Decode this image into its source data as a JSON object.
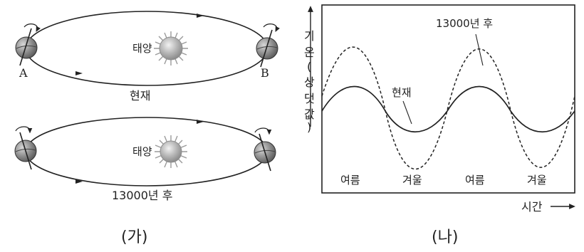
{
  "panel_a": {
    "caption": "(가)",
    "top_orbit": {
      "sun_label": "태양",
      "point_a": "A",
      "point_b": "B",
      "caption": "현재"
    },
    "bottom_orbit": {
      "sun_label": "태양",
      "caption": "13000년 후"
    }
  },
  "panel_b": {
    "caption": "(나)",
    "y_label": [
      "기",
      "온",
      "(",
      "상",
      "댓",
      "값",
      ")"
    ],
    "x_label": "시간",
    "seasons": [
      "여름",
      "겨울",
      "여름",
      "겨울"
    ],
    "curve_present_label": "현재",
    "curve_future_label": "13000년 후"
  },
  "colors": {
    "line": "#222222",
    "sun": "#a9a9a9",
    "earth": "#8a8a8a"
  },
  "icons": [
    "sun-icon",
    "earth-icon",
    "rotation-arrow-icon",
    "arrow-icon"
  ]
}
